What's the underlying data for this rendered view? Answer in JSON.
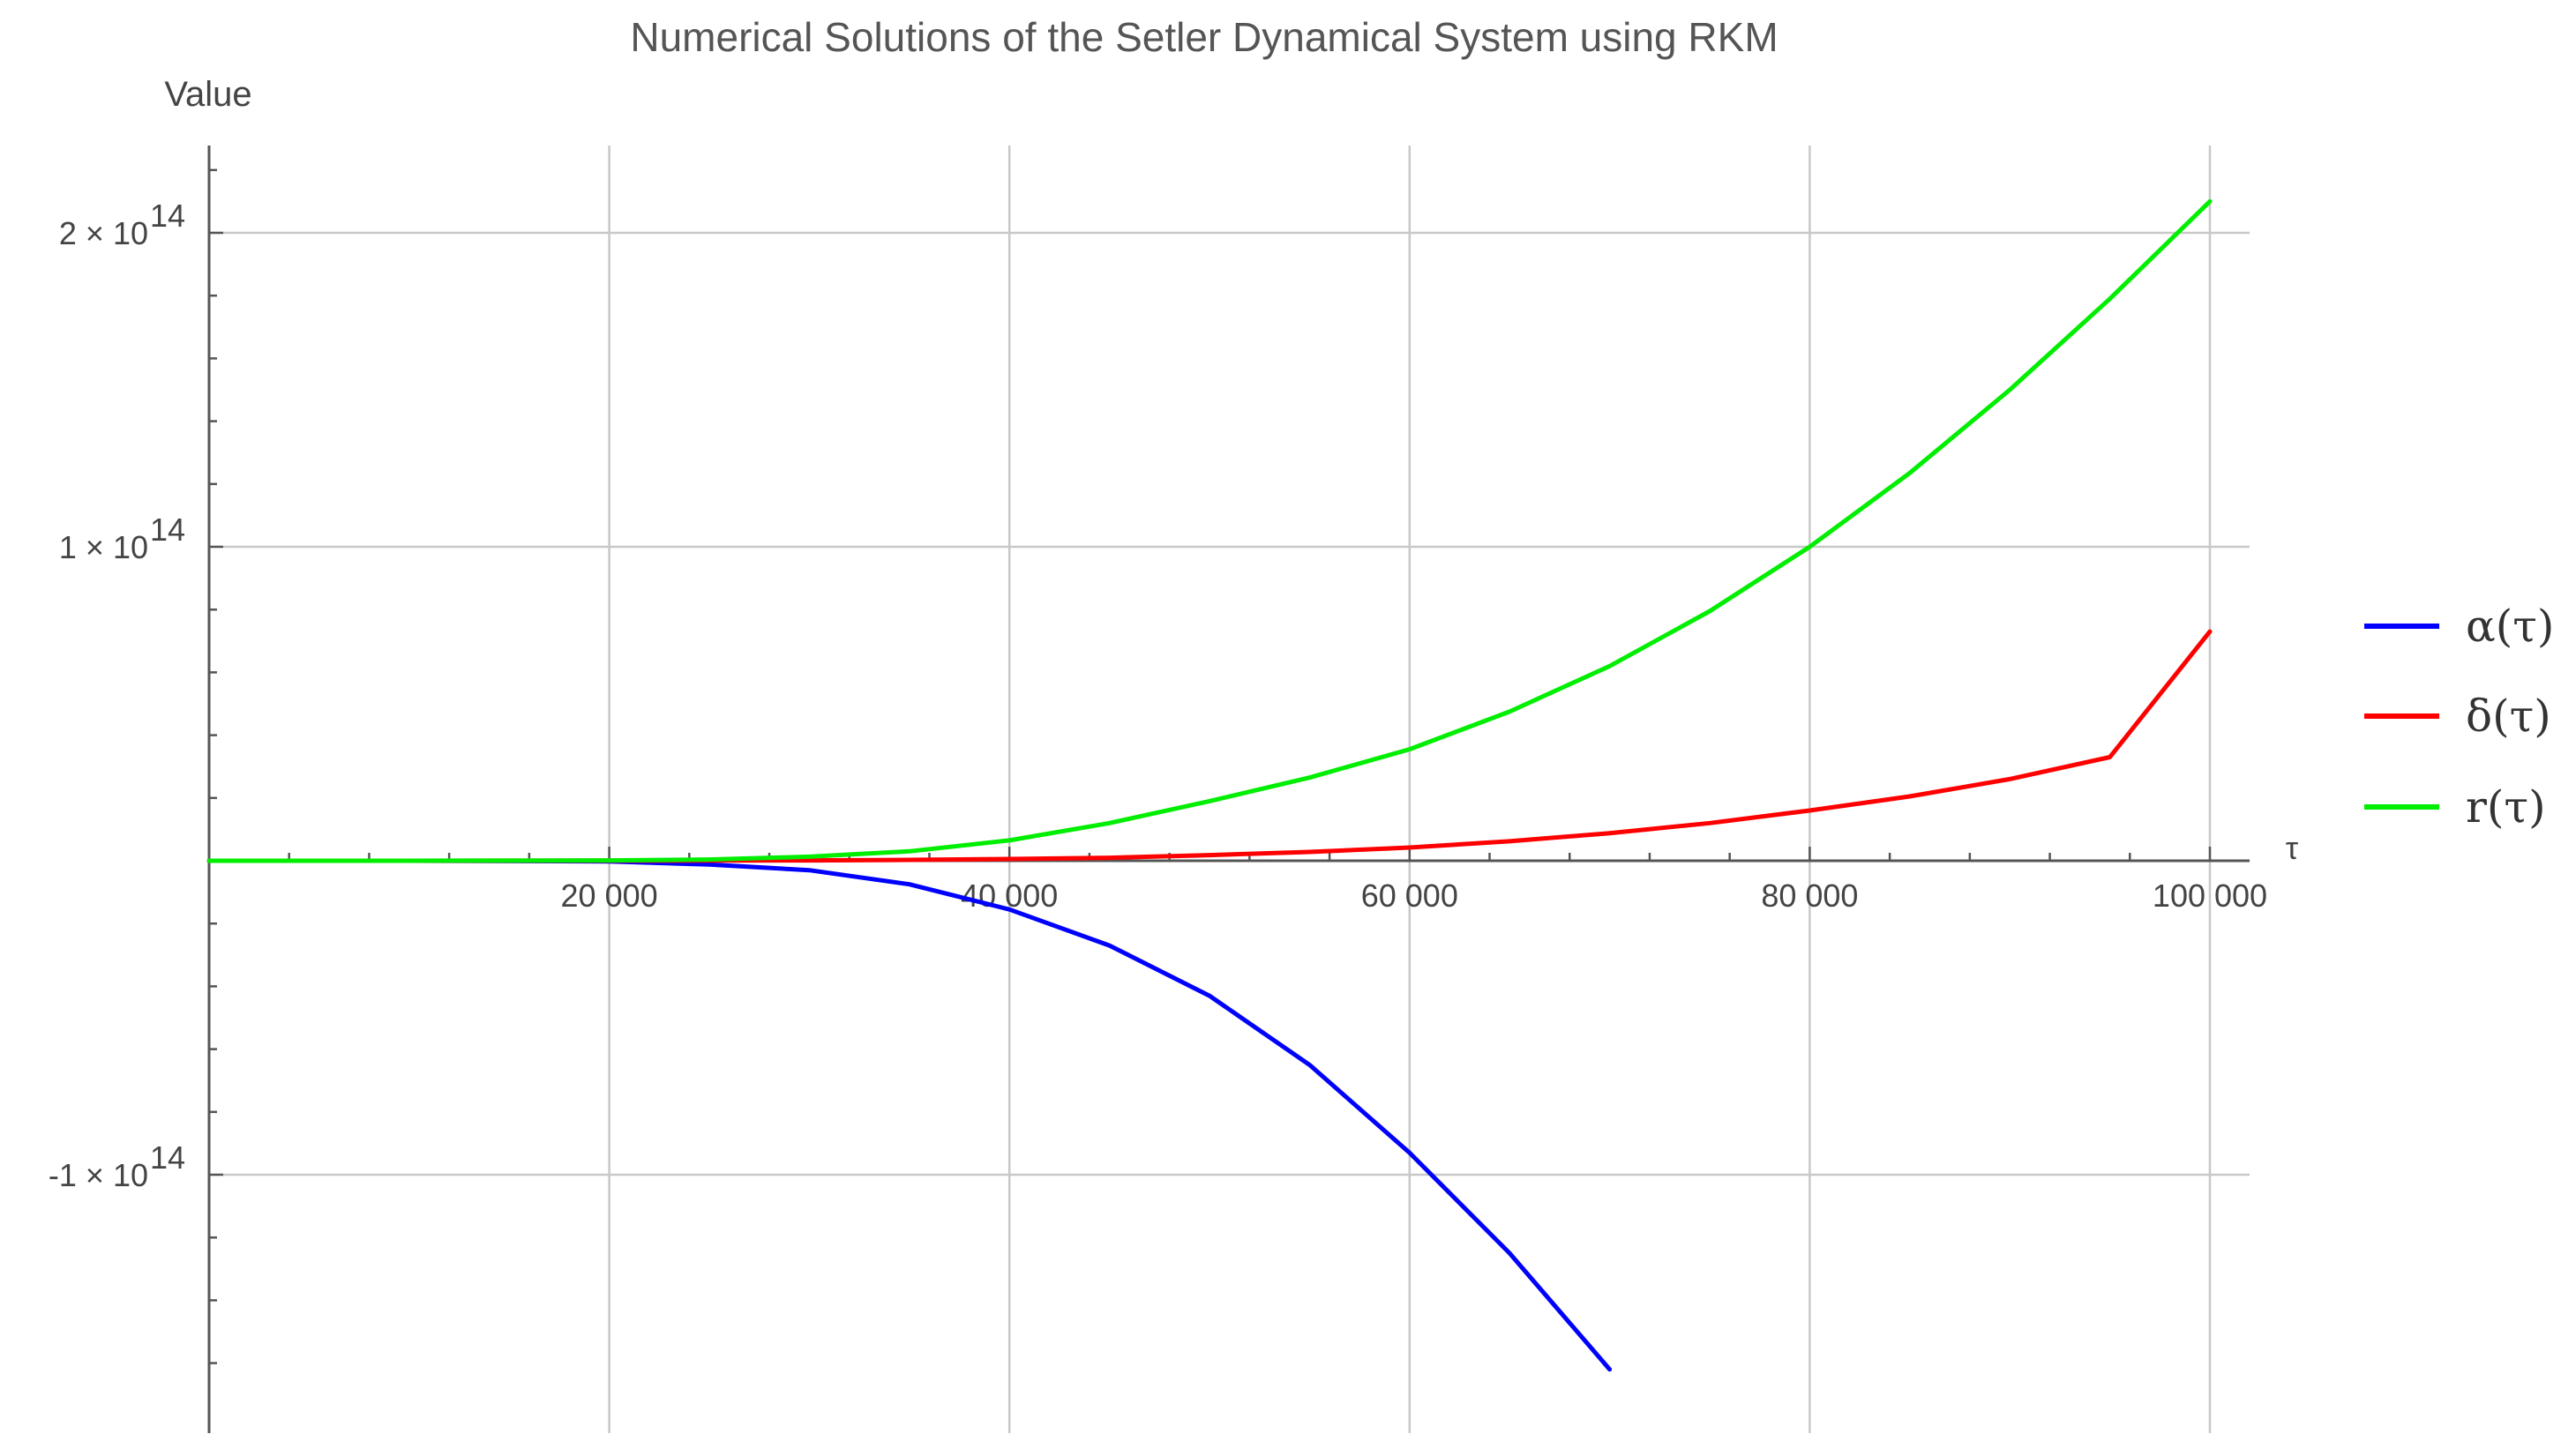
{
  "chart_data": {
    "type": "line",
    "title": "Numerical Solutions of the Setler Dynamical System using RKM",
    "ylabel": "Value",
    "xlabel": "τ",
    "xlim": [
      0,
      102000
    ],
    "ylim": [
      -182000000000000.0,
      230000000000000.0
    ],
    "grid": true,
    "legend_position": "right",
    "x_ticks": [
      {
        "value": 20000,
        "label": "20 000"
      },
      {
        "value": 40000,
        "label": "40 000"
      },
      {
        "value": 60000,
        "label": "60 000"
      },
      {
        "value": 80000,
        "label": "80 000"
      },
      {
        "value": 100000,
        "label": "100 000"
      }
    ],
    "y_ticks": [
      {
        "value": 200000000000000.0,
        "mantissa": "2 × 10",
        "exponent": "14"
      },
      {
        "value": 100000000000000.0,
        "mantissa": "1 × 10",
        "exponent": "14"
      },
      {
        "value": -100000000000000.0,
        "mantissa": "-1 × 10",
        "exponent": "14"
      }
    ],
    "series": [
      {
        "name": "α(τ)",
        "color": "#0000ff",
        "x": [
          0,
          10000,
          20000,
          25000,
          30000,
          35000,
          40000,
          45000,
          50000,
          55000,
          60000,
          65000,
          70000
        ],
        "y": [
          0,
          0,
          -200000000000.0,
          -1200000000000.0,
          -3000000000000.0,
          -7500000000000.0,
          -15500000000000.0,
          -27000000000000.0,
          -43000000000000.0,
          -65000000000000.0,
          -93000000000000.0,
          -125000000000000.0,
          -162000000000000.0
        ]
      },
      {
        "name": "δ(τ)",
        "color": "#ff0000",
        "x": [
          0,
          10000,
          20000,
          25000,
          30000,
          35000,
          40000,
          45000,
          50000,
          55000,
          60000,
          65000,
          70000,
          75000,
          80000,
          85000,
          90000,
          95000,
          100000
        ],
        "y": [
          0,
          0,
          20000000000.0,
          60000000000.0,
          120000000000.0,
          280000000000.0,
          550000000000.0,
          950000000000.0,
          1800000000000.0,
          2800000000000.0,
          4200000000000.0,
          6200000000000.0,
          8800000000000.0,
          12000000000000.0,
          16000000000000.0,
          20500000000000.0,
          26000000000000.0,
          33000000000000.0,
          73000000000000.0
        ]
      },
      {
        "name": "r(τ)",
        "color": "#00ee00",
        "x": [
          0,
          10000,
          20000,
          25000,
          30000,
          35000,
          40000,
          45000,
          50000,
          55000,
          60000,
          65000,
          70000,
          75000,
          80000,
          85000,
          90000,
          95000,
          100000
        ],
        "y": [
          0,
          0,
          100000000000.0,
          400000000000.0,
          1300000000000.0,
          3000000000000.0,
          6500000000000.0,
          12000000000000.0,
          19000000000000.0,
          26500000000000.0,
          35500000000000.0,
          47500000000000.0,
          62000000000000.0,
          79500000000000.0,
          100000000000000.0,
          123500000000000.0,
          150000000000000.0,
          179000000000000.0,
          210000000000000.0
        ]
      }
    ]
  }
}
